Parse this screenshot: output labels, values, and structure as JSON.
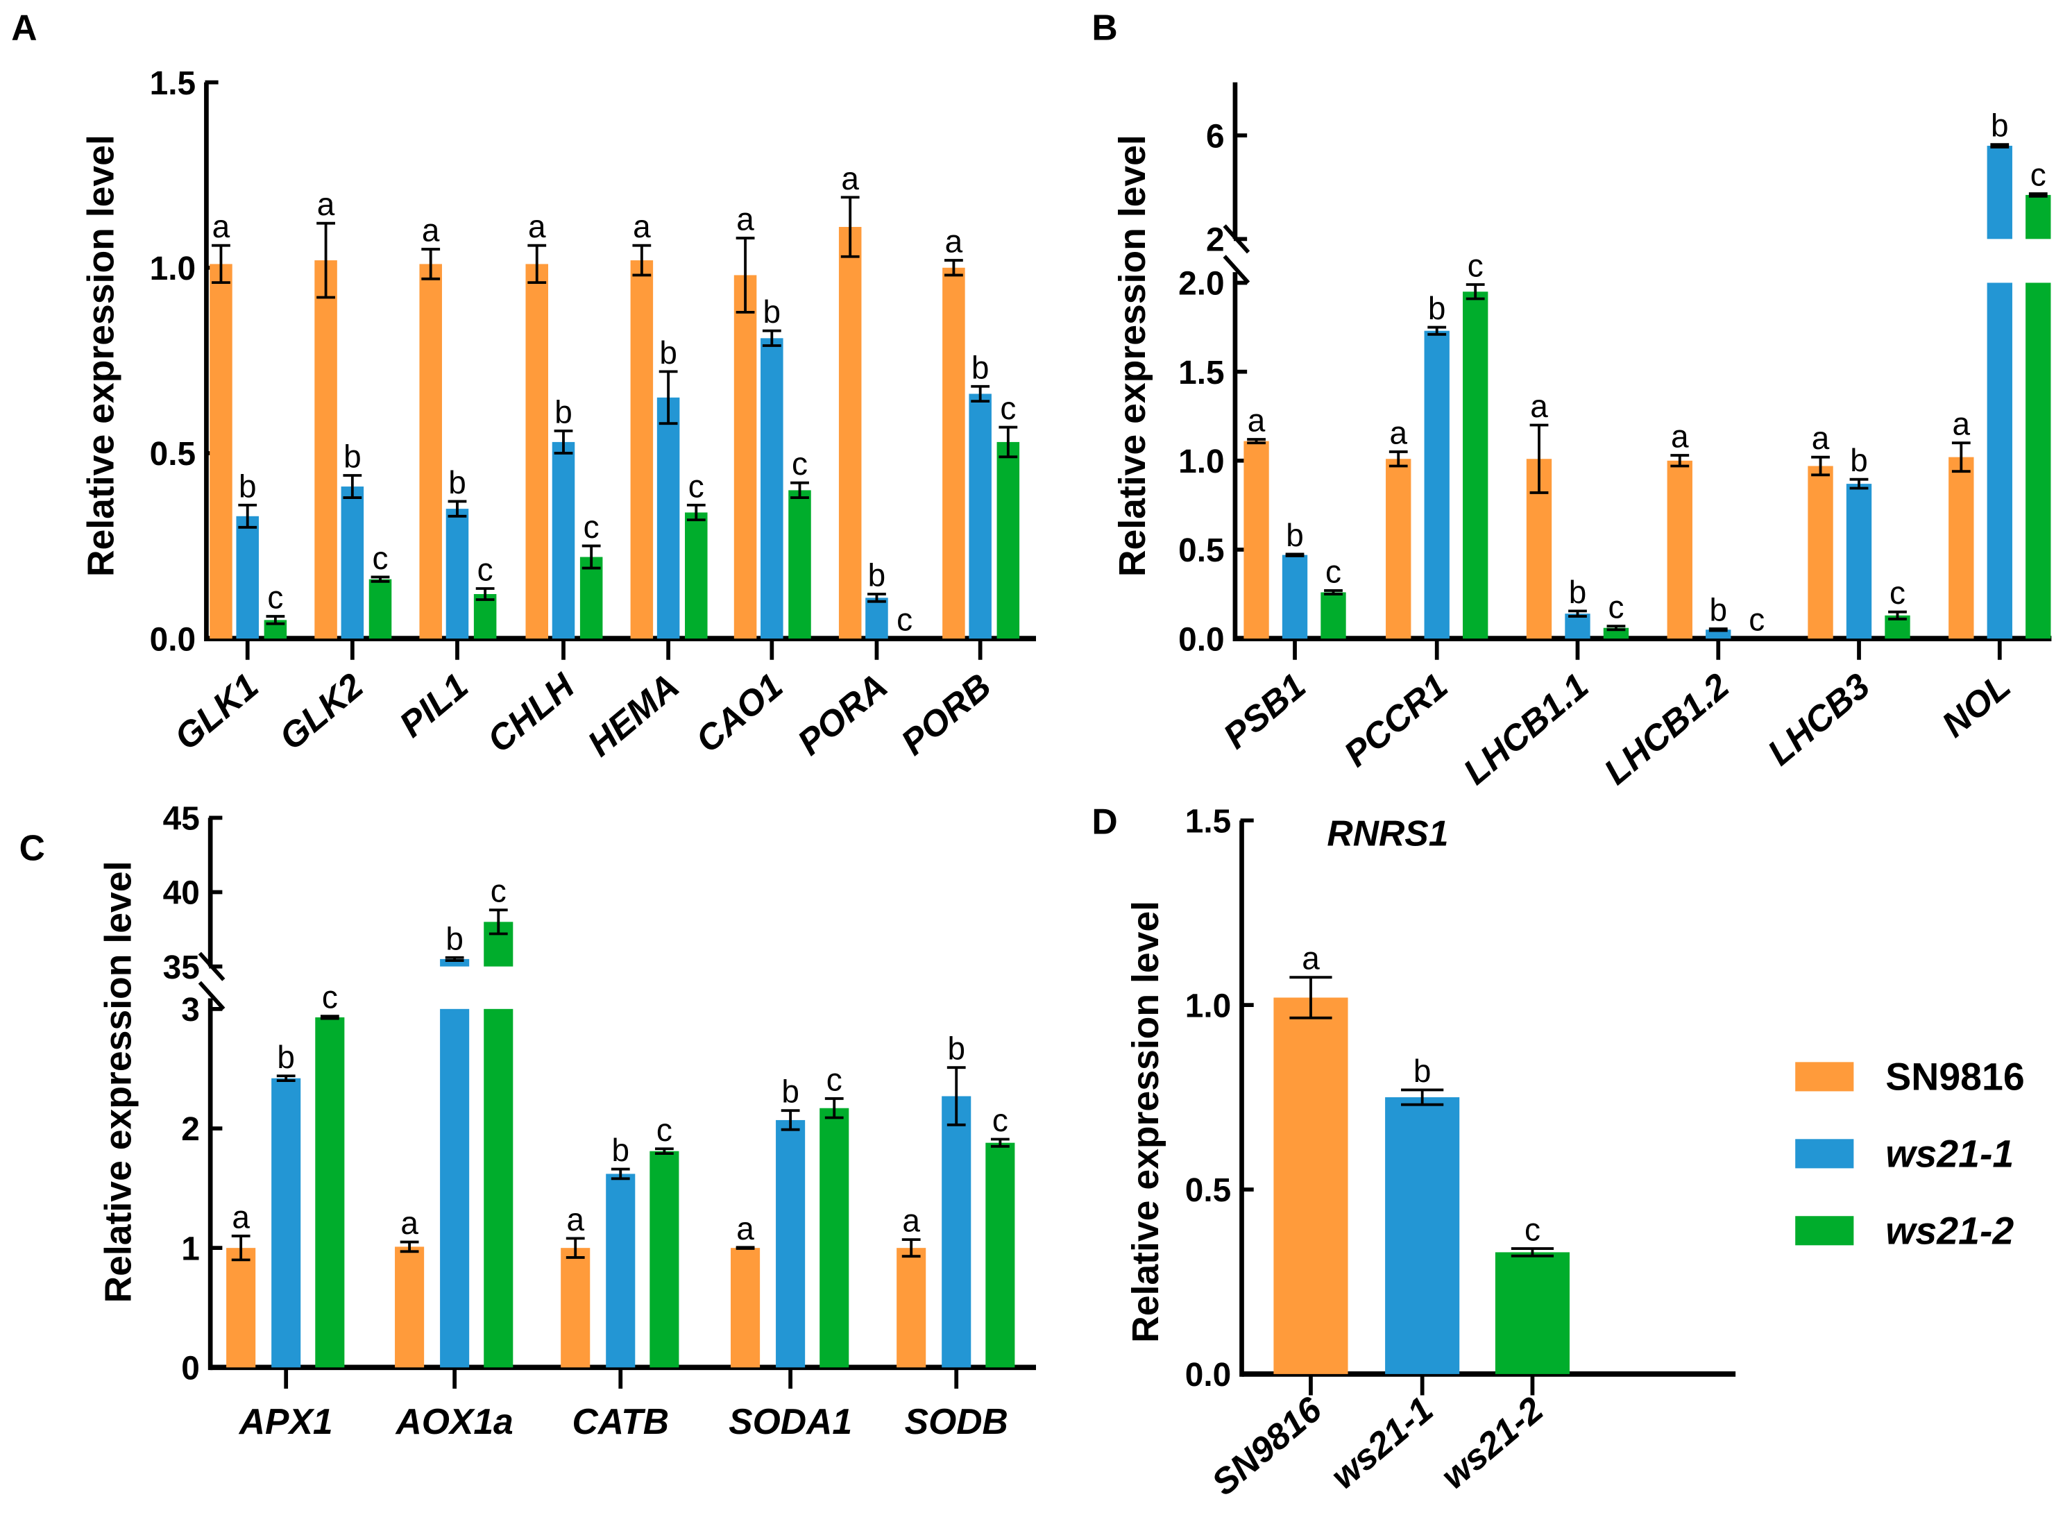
{
  "colors": {
    "SN9816": "#FF9B3B",
    "ws21-1": "#2396D4",
    "ws21-2": "#00AD2C",
    "axis": "#000000"
  },
  "legend": {
    "entries": [
      {
        "label": "SN9816",
        "italic": false,
        "color": "#FF9B3B"
      },
      {
        "label": "ws21-1",
        "italic": true,
        "color": "#2396D4"
      },
      {
        "label": "ws21-2",
        "italic": true,
        "color": "#00AD2C"
      }
    ]
  },
  "chart_data": [
    {
      "panel": "A",
      "type": "bar",
      "title": "",
      "ylabel": "Relative expression level",
      "xlabel": "",
      "ylim": [
        0,
        1.5
      ],
      "yticks": [
        "0.0",
        "0.5",
        "1.0",
        "1.5"
      ],
      "ytick_values": [
        0,
        0.5,
        1.0,
        1.5
      ],
      "categories": [
        "GLK1",
        "GLK2",
        "PIL1",
        "CHLH",
        "HEMA",
        "CAO1",
        "PORA",
        "PORB"
      ],
      "series": [
        {
          "name": "SN9816",
          "values": [
            1.01,
            1.02,
            1.01,
            1.01,
            1.02,
            0.98,
            1.11,
            1.0
          ],
          "errors": [
            0.05,
            0.1,
            0.04,
            0.05,
            0.04,
            0.1,
            0.08,
            0.02
          ],
          "letters": [
            "a",
            "a",
            "a",
            "a",
            "a",
            "a",
            "a",
            "a"
          ]
        },
        {
          "name": "ws21-1",
          "values": [
            0.33,
            0.41,
            0.35,
            0.53,
            0.65,
            0.81,
            0.11,
            0.66
          ],
          "errors": [
            0.03,
            0.03,
            0.02,
            0.03,
            0.07,
            0.02,
            0.01,
            0.02
          ],
          "letters": [
            "b",
            "b",
            "b",
            "b",
            "b",
            "b",
            "b",
            "b"
          ]
        },
        {
          "name": "ws21-2",
          "values": [
            0.05,
            0.16,
            0.12,
            0.22,
            0.34,
            0.4,
            0.0,
            0.53
          ],
          "errors": [
            0.01,
            0.006,
            0.015,
            0.03,
            0.02,
            0.02,
            0.0,
            0.04
          ],
          "letters": [
            "c",
            "c",
            "c",
            "c",
            "c",
            "c",
            "c",
            "c"
          ]
        }
      ]
    },
    {
      "panel": "B",
      "type": "bar",
      "title": "",
      "ylabel": "Relative expression level",
      "xlabel": "",
      "ylim": [
        0,
        8
      ],
      "axis_break": [
        2,
        2
      ],
      "yticks": [
        "0.0",
        "0.5",
        "1.0",
        "1.5",
        "2.0",
        "2",
        "6"
      ],
      "ytick_values": [
        0,
        0.5,
        1.0,
        1.5,
        2.0,
        2,
        6
      ],
      "categories": [
        "PSB1",
        "PCCR1",
        "LHCB1.1",
        "LHCB1.2",
        "LHCB3",
        "NOL"
      ],
      "series": [
        {
          "name": "SN9816",
          "values": [
            1.11,
            1.01,
            1.01,
            1.0,
            0.97,
            1.02
          ],
          "errors": [
            0.01,
            0.04,
            0.19,
            0.03,
            0.05,
            0.08
          ],
          "letters": [
            "a",
            "a",
            "a",
            "a",
            "a",
            "a"
          ]
        },
        {
          "name": "ws21-1",
          "values": [
            0.47,
            1.73,
            0.14,
            0.05,
            0.87,
            5.6
          ],
          "errors": [
            0.005,
            0.02,
            0.015,
            0.005,
            0.025,
            0.05
          ],
          "letters": [
            "b",
            "b",
            "b",
            "b",
            "b",
            "b"
          ]
        },
        {
          "name": "ws21-2",
          "values": [
            0.26,
            1.95,
            0.06,
            0.0,
            0.13,
            3.7
          ],
          "errors": [
            0.01,
            0.04,
            0.01,
            0.0,
            0.02,
            0.05
          ],
          "letters": [
            "c",
            "c",
            "c",
            "c",
            "c",
            "c"
          ]
        }
      ]
    },
    {
      "panel": "C",
      "type": "bar",
      "title": "",
      "ylabel": "Relative expression level",
      "xlabel": "",
      "ylim": [
        0,
        45
      ],
      "axis_break": [
        3,
        35
      ],
      "yticks": [
        "0",
        "1",
        "2",
        "3",
        "35",
        "40",
        "45"
      ],
      "ytick_values": [
        0,
        1,
        2,
        3,
        35,
        40,
        45
      ],
      "categories": [
        "APX1",
        "AOX1a",
        "CATB",
        "SODA1",
        "SODB"
      ],
      "series": [
        {
          "name": "SN9816",
          "values": [
            1.0,
            1.01,
            1.0,
            1.0,
            1.0
          ],
          "errors": [
            0.1,
            0.04,
            0.08,
            0.005,
            0.07
          ],
          "letters": [
            "a",
            "a",
            "a",
            "a",
            "a"
          ]
        },
        {
          "name": "ws21-1",
          "values": [
            2.42,
            35.5,
            1.62,
            2.07,
            2.27
          ],
          "errors": [
            0.02,
            0.1,
            0.04,
            0.08,
            0.24
          ],
          "letters": [
            "b",
            "b",
            "b",
            "b",
            "b"
          ]
        },
        {
          "name": "ws21-2",
          "values": [
            2.93,
            38.0,
            1.81,
            2.17,
            1.88
          ],
          "errors": [
            0.01,
            0.8,
            0.02,
            0.08,
            0.03
          ],
          "letters": [
            "c",
            "c",
            "c",
            "c",
            "c"
          ]
        }
      ]
    },
    {
      "panel": "D",
      "type": "bar",
      "title": "RNRS1",
      "ylabel": "Relative expression level",
      "xlabel": "",
      "ylim": [
        0,
        1.5
      ],
      "yticks": [
        "0.0",
        "0.5",
        "1.0",
        "1.5"
      ],
      "ytick_values": [
        0,
        0.5,
        1.0,
        1.5
      ],
      "categories": [
        "SN9816",
        "ws21-1",
        "ws21-2"
      ],
      "values": [
        1.02,
        0.75,
        0.33
      ],
      "errors": [
        0.055,
        0.02,
        0.01
      ],
      "letters": [
        "a",
        "b",
        "c"
      ]
    }
  ]
}
